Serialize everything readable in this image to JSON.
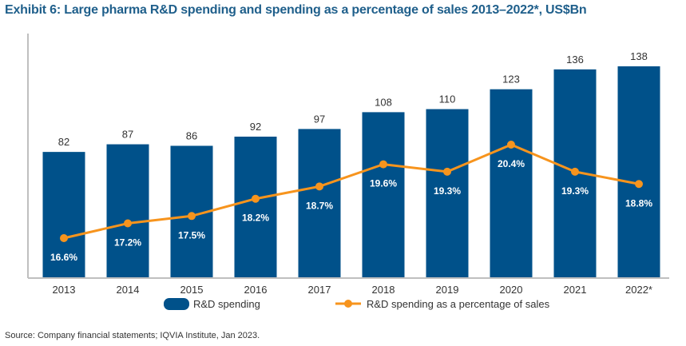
{
  "header": {
    "title": "Exhibit 6: Large pharma R&D spending and spending as a percentage of sales 2013–2022*, US$Bn"
  },
  "footer": {
    "source": "Source: Company financial statements; IQVIA Institute, Jan 2023."
  },
  "chart_data": {
    "type": "bar",
    "categories": [
      "2013",
      "2014",
      "2015",
      "2016",
      "2017",
      "2018",
      "2019",
      "2020",
      "2021",
      "2022*"
    ],
    "series": [
      {
        "name": "R&D spending",
        "type": "bar",
        "values": [
          82,
          87,
          86,
          92,
          97,
          108,
          110,
          123,
          136,
          138
        ],
        "labels": [
          "82",
          "87",
          "86",
          "92",
          "97",
          "108",
          "110",
          "123",
          "136",
          "138"
        ],
        "color": "#00518a"
      },
      {
        "name": "R&D spending as a percentage of sales",
        "type": "line",
        "values": [
          16.6,
          17.2,
          17.5,
          18.2,
          18.7,
          19.6,
          19.3,
          20.4,
          19.3,
          18.8
        ],
        "labels": [
          "16.6%",
          "17.2%",
          "17.5%",
          "18.2%",
          "18.7%",
          "19.6%",
          "19.3%",
          "20.4%",
          "19.3%",
          "18.8%"
        ],
        "color": "#f7941d"
      }
    ],
    "legend_position": "bottom",
    "grid": false
  }
}
